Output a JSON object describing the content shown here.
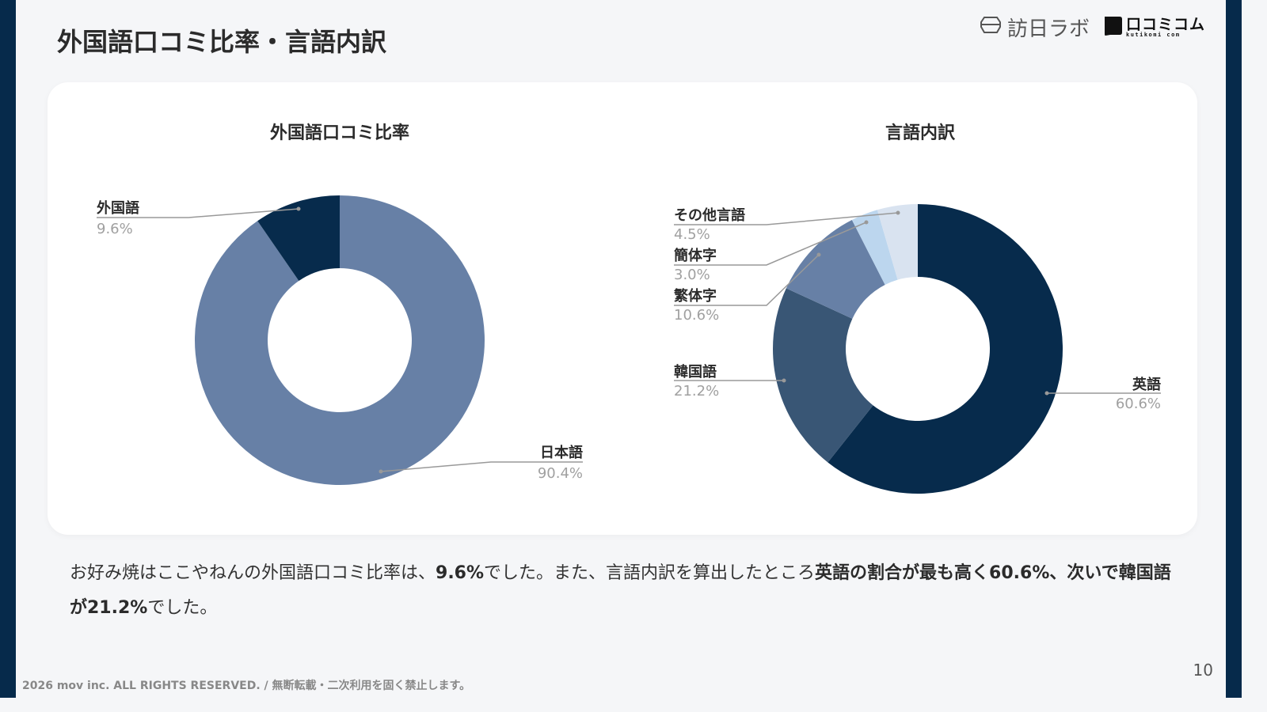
{
  "page": {
    "title": "外国語口コミ比率・言語内訳",
    "page_number": "10",
    "copyright": "2026 mov inc. ALL RIGHTS RESERVED. / 無断転載・二次利用を固く禁止します。"
  },
  "logos": {
    "houjin_label": "訪日ラボ",
    "kutikomi_label": "口コミコム",
    "kutikomi_sub": "kutikomi com"
  },
  "colors": {
    "background": "#f5f6f8",
    "sidebar": "#062a4b",
    "card": "#ffffff",
    "leader_line": "#999999",
    "label_value": "#a0a0a0"
  },
  "summary": {
    "segments": [
      {
        "text": "お好み焼はここやねんの外国語口コミ比率は、",
        "bold": false
      },
      {
        "text": "9.6%",
        "bold": true
      },
      {
        "text": "でした。また、言語内訳を算出したところ",
        "bold": false
      },
      {
        "text": "英語の割合が最も高く60.6%、次いで韓国語が21.2%",
        "bold": true
      },
      {
        "text": "でした。",
        "bold": false
      }
    ]
  },
  "chart_data": [
    {
      "type": "pie",
      "variant": "donut",
      "title": "外国語口コミ比率",
      "start_angle_deg": 0,
      "direction": "clockwise",
      "categories": [
        "日本語",
        "外国語"
      ],
      "values": [
        90.4,
        9.6
      ],
      "value_labels": [
        "90.4%",
        "9.6%"
      ],
      "colors": [
        "#6780a6",
        "#072b4c"
      ],
      "unit": "%"
    },
    {
      "type": "pie",
      "variant": "donut",
      "title": "言語内訳",
      "start_angle_deg": 0,
      "direction": "clockwise",
      "categories": [
        "英語",
        "韓国語",
        "繁体字",
        "簡体字",
        "その他言語"
      ],
      "values": [
        60.6,
        21.2,
        10.6,
        3.0,
        4.5
      ],
      "value_labels": [
        "60.6%",
        "21.2%",
        "10.6%",
        "3.0%",
        "4.5%"
      ],
      "colors": [
        "#072b4c",
        "#395675",
        "#6780a6",
        "#bcd6ee",
        "#d9e3f0"
      ],
      "unit": "%"
    }
  ]
}
